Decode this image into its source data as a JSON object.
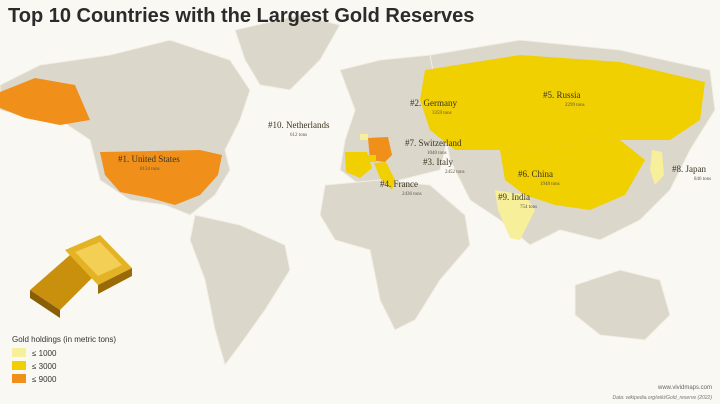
{
  "title": "Top 10 Countries with the Largest Gold Reserves",
  "countries": [
    {
      "label": "#1. United States",
      "amount": "8134 tons",
      "color": "#f0901a"
    },
    {
      "label": "#2. Germany",
      "amount": "3359 tons",
      "color": "#f0901a"
    },
    {
      "label": "#3. Italy",
      "amount": "2452 tons",
      "color": "#f0d000"
    },
    {
      "label": "#4. France",
      "amount": "2436 tons",
      "color": "#f0d000"
    },
    {
      "label": "#5. Russia",
      "amount": "2299 tons",
      "color": "#f0d000"
    },
    {
      "label": "#6. China",
      "amount": "1948 tons",
      "color": "#f0d000"
    },
    {
      "label": "#7. Switzerland",
      "amount": "1040 tons",
      "color": "#f0d000"
    },
    {
      "label": "#8. Japan",
      "amount": "846 tons",
      "color": "#f7ef9a"
    },
    {
      "label": "#9. India",
      "amount": "754 tons",
      "color": "#f7ef9a"
    },
    {
      "label": "#10. Netherlands",
      "amount": "612 tons",
      "color": "#f7ef9a"
    }
  ],
  "legend": {
    "title": "Gold holdings (in metric tons)",
    "items": [
      {
        "label": "≤ 1000",
        "color": "#f7ef9a"
      },
      {
        "label": "≤ 3000",
        "color": "#f0d000"
      },
      {
        "label": "≤ 9000",
        "color": "#f0901a"
      }
    ]
  },
  "credits": {
    "site": "www.vividmaps.com",
    "source": "Data: wikipedia.org/wiki/Gold_reserve (2022)"
  }
}
